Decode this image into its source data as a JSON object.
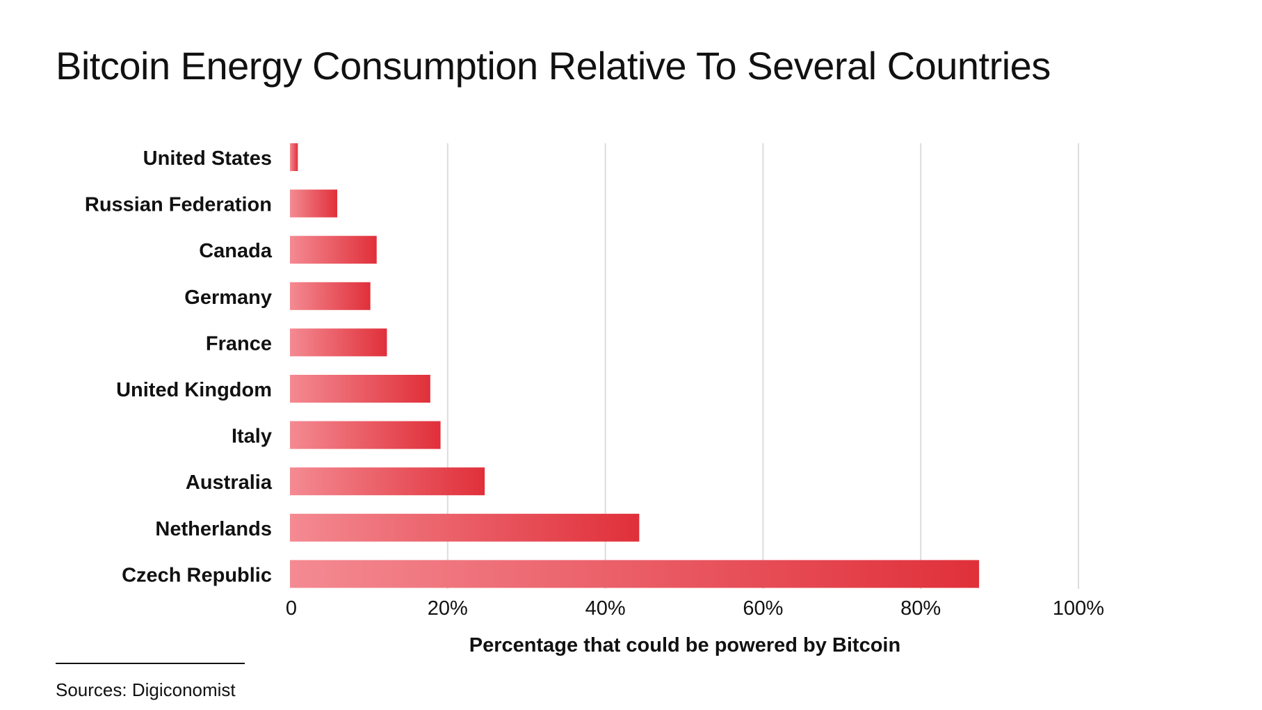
{
  "title": "Bitcoin Energy Consumption Relative To Several Countries",
  "source": "Sources: Digiconomist",
  "chart_data": {
    "type": "bar",
    "orientation": "horizontal",
    "title": "Bitcoin Energy Consumption Relative To Several Countries",
    "xlabel": "Percentage that could be powered by Bitcoin",
    "ylabel": "",
    "categories": [
      "United States",
      "Russian Federation",
      "Canada",
      "Germany",
      "France",
      "United Kingdom",
      "Italy",
      "Australia",
      "Netherlands",
      "Czech Republic"
    ],
    "values": [
      1.0,
      6.0,
      11.0,
      10.2,
      12.3,
      17.8,
      19.1,
      24.7,
      44.3,
      87.4
    ],
    "xlim": [
      0,
      100
    ],
    "ticks": [
      0,
      20,
      40,
      60,
      80,
      100
    ],
    "tick_labels": [
      "0",
      "20%",
      "40%",
      "60%",
      "80%",
      "100%"
    ],
    "grid": "vertical",
    "legend": "none",
    "colors": {
      "bar_start": "#f48a92",
      "bar_end": "#e0303a",
      "grid": "#dcdcdc",
      "text": "#111111"
    }
  }
}
